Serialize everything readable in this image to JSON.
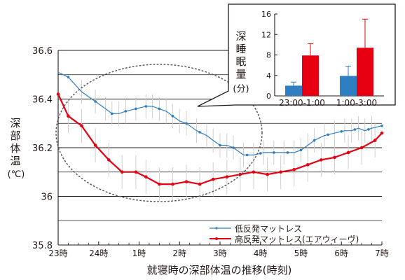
{
  "chart_data": [
    {
      "type": "line",
      "xlabel": "就寝時の深部体温の推移(時刻)",
      "ylabel_chars": [
        "深",
        "部",
        "体",
        "温"
      ],
      "ylabel_unit": "(℃)",
      "x_tick_labels": [
        "23時",
        "24時",
        "1時",
        "2時",
        "3時",
        "4時",
        "5時",
        "6時",
        "7時"
      ],
      "x_range_hours": [
        0,
        8
      ],
      "ylim": [
        35.8,
        36.6
      ],
      "y_ticks": [
        35.8,
        36,
        36.2,
        36.4,
        36.6
      ],
      "y_tick_labels": [
        "35.8",
        "36",
        "36.2",
        "36.4",
        "36.6"
      ],
      "grid": "horizontal",
      "legend_position": "bottom-right",
      "annotation": "dotted ellipse highlighting 23時–4時",
      "series": [
        {
          "name": "低反発マットレス",
          "color": "#2e7fc1",
          "x": [
            0,
            0.25,
            0.58,
            0.92,
            1.17,
            1.33,
            1.5,
            1.67,
            1.92,
            2.17,
            2.33,
            2.5,
            2.67,
            2.83,
            3,
            3.17,
            3.42,
            3.67,
            3.83,
            4,
            4.17,
            4.33,
            4.58,
            4.83,
            5.08,
            5.33,
            5.58,
            5.83,
            6,
            6.17,
            6.33,
            6.58,
            6.83,
            7.08,
            7.25,
            7.42,
            7.58,
            7.75,
            8
          ],
          "y": [
            36.51,
            36.49,
            36.43,
            36.39,
            36.36,
            36.34,
            36.34,
            36.35,
            36.36,
            36.37,
            36.37,
            36.36,
            36.35,
            36.33,
            36.31,
            36.3,
            36.27,
            36.25,
            36.23,
            36.21,
            36.21,
            36.2,
            36.17,
            36.17,
            36.18,
            36.18,
            36.18,
            36.18,
            36.19,
            36.21,
            36.23,
            36.25,
            36.26,
            36.27,
            36.27,
            36.28,
            36.27,
            36.28,
            36.29
          ],
          "error": [
            0,
            0,
            0.05,
            0.05,
            0.05,
            0.05,
            0.05,
            0.05,
            0.05,
            0.05,
            0.05,
            0.05,
            0.05,
            0.05,
            0.05,
            0.05,
            0.05,
            0.05,
            0.05,
            0.05,
            0.05,
            0.05,
            0.05,
            0.05,
            0.05,
            0.05,
            0.05,
            0.05,
            0.05,
            0.05,
            0.05,
            0.05,
            0.05,
            0.05,
            0.05,
            0.05,
            0.05,
            0.05,
            0
          ],
          "markers": [
            0.25,
            0.92,
            1.33,
            1.67,
            1.92,
            2.17,
            2.5,
            2.83,
            3.17,
            3.5,
            4,
            4.33,
            4.67,
            5,
            5.33,
            5.67,
            6,
            6.33,
            6.67,
            7,
            7.33,
            7.67,
            8
          ]
        },
        {
          "name": "高反発マットレス(エアウィーヴ)",
          "color": "#e60012",
          "x": [
            0,
            0.25,
            0.58,
            0.92,
            1.25,
            1.58,
            1.92,
            2.17,
            2.5,
            2.83,
            3.17,
            3.5,
            3.83,
            4.17,
            4.5,
            4.83,
            5.17,
            5.5,
            5.83,
            6.17,
            6.5,
            6.83,
            7.17,
            7.5,
            7.83,
            8
          ],
          "y": [
            36.42,
            36.33,
            36.29,
            36.21,
            36.15,
            36.1,
            36.1,
            36.08,
            36.05,
            36.05,
            36.06,
            36.05,
            36.07,
            36.08,
            36.09,
            36.1,
            36.09,
            36.1,
            36.11,
            36.13,
            36.15,
            36.16,
            36.18,
            36.2,
            36.23,
            36.26
          ],
          "error": [
            0,
            0.07,
            0.07,
            0.07,
            0.07,
            0.07,
            0.07,
            0.07,
            0.07,
            0.07,
            0.07,
            0.07,
            0.07,
            0.07,
            0.07,
            0.07,
            0.07,
            0.07,
            0.07,
            0.07,
            0.07,
            0.07,
            0.07,
            0.07,
            0.07,
            0
          ],
          "markers": [
            0,
            0.25,
            0.58,
            0.92,
            1.25,
            1.58,
            1.92,
            2.17,
            2.5,
            2.83,
            3.17,
            3.5,
            3.83,
            4.17,
            4.5,
            4.83,
            5.17,
            5.5,
            5.83,
            6.17,
            6.5,
            6.83,
            7.17,
            7.5,
            7.83,
            8
          ]
        }
      ]
    },
    {
      "type": "bar",
      "ylabel_chars": [
        "深",
        "睡",
        "眠",
        "量"
      ],
      "ylabel_unit": "(分)",
      "categories": [
        "23:00-1:00",
        "1:00-3:00"
      ],
      "ylim": [
        0,
        16
      ],
      "y_ticks": [
        0,
        4,
        8,
        12,
        16
      ],
      "y_tick_labels": [
        "0",
        "4",
        "8",
        "12",
        "16"
      ],
      "series": [
        {
          "name": "低反発マットレス",
          "color": "#2e7fc1",
          "values": [
            2.0,
            3.9
          ],
          "error": [
            0.7,
            1.9
          ]
        },
        {
          "name": "高反発マットレス(エアウィーヴ)",
          "color": "#e60012",
          "values": [
            7.9,
            9.4
          ],
          "error": [
            2.3,
            5.6
          ]
        }
      ]
    }
  ]
}
